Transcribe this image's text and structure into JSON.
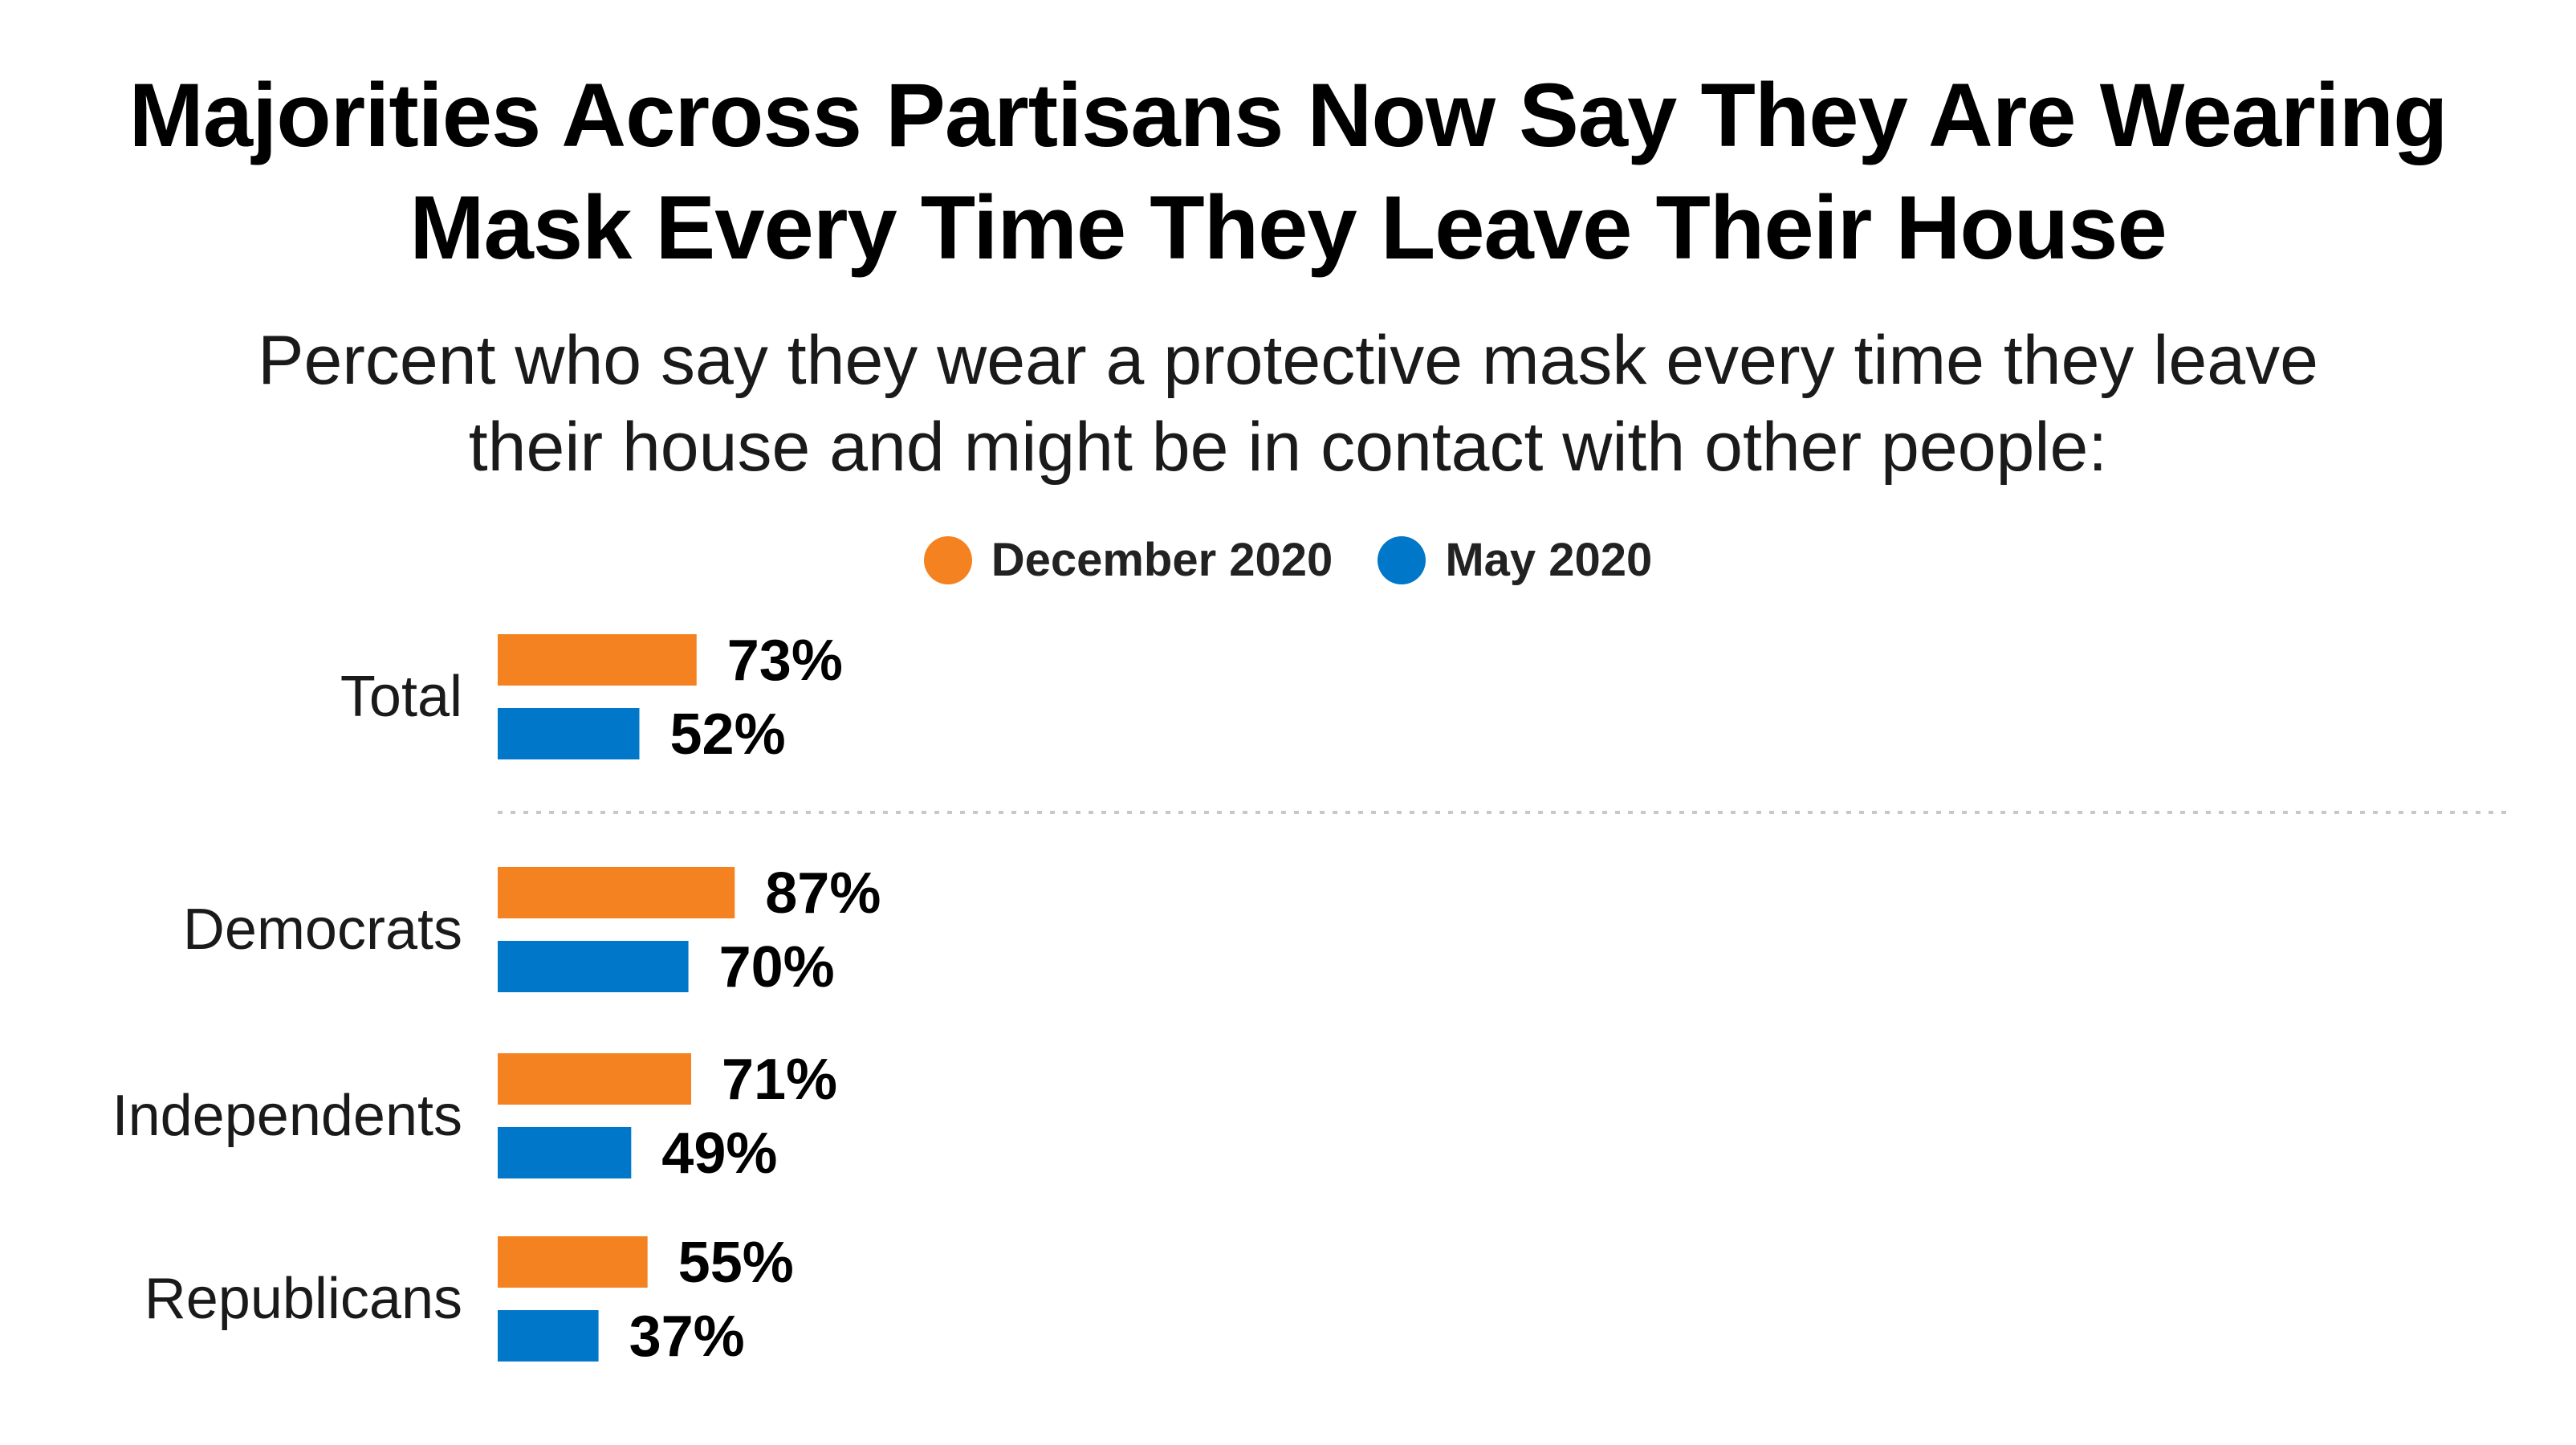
{
  "title": {
    "line1": "Majorities Across Partisans Now Say They Are Wearing",
    "line2": "Mask Every Time They Leave Their House"
  },
  "subtitle": {
    "line1": "Percent who say they wear a protective mask every time they leave",
    "line2": "their house and might be in contact with other people:"
  },
  "colors": {
    "december_2020": "#F58220",
    "may_2020": "#0077C8",
    "separator": "#c8c8c8"
  },
  "chart_data": {
    "type": "bar",
    "orientation": "horizontal",
    "title": "Majorities Across Partisans Now Say They Are Wearing Mask Every Time They Leave Their House",
    "subtitle": "Percent who say they wear a protective mask every time they leave their house and might be in contact with other people:",
    "categories": [
      "Total",
      "Democrats",
      "Independents",
      "Republicans"
    ],
    "series": [
      {
        "name": "December 2020",
        "values": [
          73,
          87,
          71,
          55
        ],
        "labels": [
          "73%",
          "87%",
          "71%",
          "55%"
        ]
      },
      {
        "name": "May 2020",
        "values": [
          52,
          70,
          49,
          37
        ],
        "labels": [
          "52%",
          "70%",
          "49%",
          "37%"
        ]
      }
    ],
    "xlim": [
      0,
      87
    ],
    "grid": false,
    "legend_position": "top-center",
    "separator_after": "Total"
  }
}
